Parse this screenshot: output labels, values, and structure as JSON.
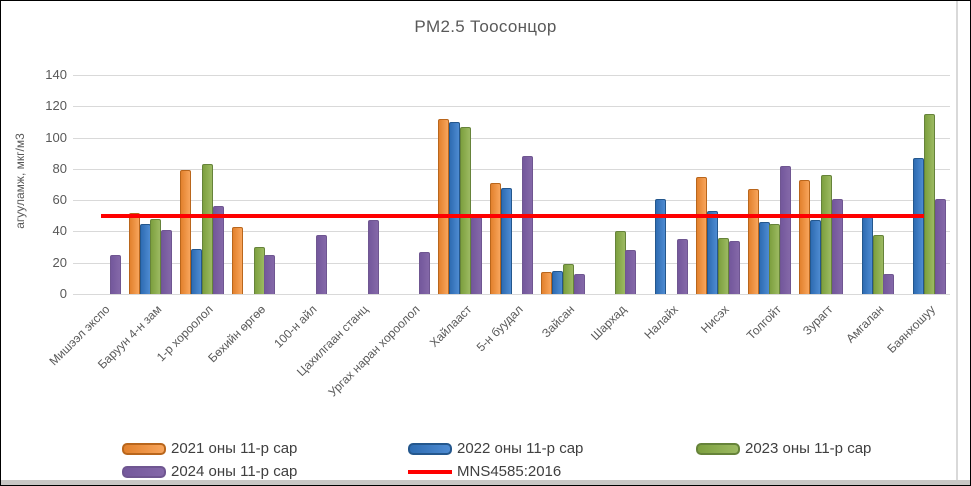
{
  "chart_data": {
    "type": "bar",
    "title": "PM2.5 Тоосонцор",
    "ylabel": "агууламж,  мкг/м3",
    "xlabel": "",
    "ylim": [
      0,
      140
    ],
    "ytick_step": 20,
    "grid": true,
    "legend_position": "bottom",
    "categories": [
      "Мишээл экспо",
      "Баруун 4-н зам",
      "1-р хороолол",
      "Бөхийн өргөө",
      "100-н айл",
      "Цахилгаан станц",
      "Ургах наран хороолол",
      "Хайлааст",
      "5-н буудал",
      "Зайсан",
      "Шархад",
      "Налайх",
      "Нисэх",
      "Толгойт",
      "Зурагт",
      "Амгалан",
      "Баянхошуу"
    ],
    "series": [
      {
        "name": "2021 оны 11-р сар",
        "type": "bar",
        "fill": [
          "#e2812d",
          "#f8a55c"
        ],
        "border": "#b9661c",
        "values": [
          null,
          52,
          79,
          43,
          null,
          null,
          null,
          112,
          71,
          14,
          null,
          null,
          75,
          67,
          73,
          null,
          null
        ]
      },
      {
        "name": "2022 оны 11-р сар",
        "type": "bar",
        "fill": [
          "#2e6cb2",
          "#4e8bd2"
        ],
        "border": "#24578d",
        "values": [
          null,
          45,
          29,
          null,
          null,
          null,
          null,
          110,
          68,
          15,
          null,
          61,
          53,
          46,
          47,
          49,
          87
        ]
      },
      {
        "name": "2023 оны 11-р сар",
        "type": "bar",
        "fill": [
          "#7da03f",
          "#9cba62"
        ],
        "border": "#66833a",
        "values": [
          null,
          48,
          83,
          30,
          null,
          null,
          null,
          107,
          null,
          19,
          40,
          null,
          36,
          45,
          76,
          38,
          115
        ]
      },
      {
        "name": "2024 оны 11-р сар",
        "type": "bar",
        "fill": [
          "#74589c",
          "#8468a8"
        ],
        "border": "#6f5691",
        "values": [
          25,
          41,
          56,
          25,
          38,
          47,
          27,
          49,
          88,
          13,
          28,
          35,
          34,
          82,
          61,
          13,
          61
        ]
      },
      {
        "name": "MNS4585:2016",
        "type": "line",
        "color": "#ff0000",
        "value": 50
      }
    ],
    "colors": {
      "gridline": "#d9d9d9",
      "axis_text": "#595959",
      "legend_text": "#3f3f3f",
      "reference_line": "#ff0000"
    }
  }
}
